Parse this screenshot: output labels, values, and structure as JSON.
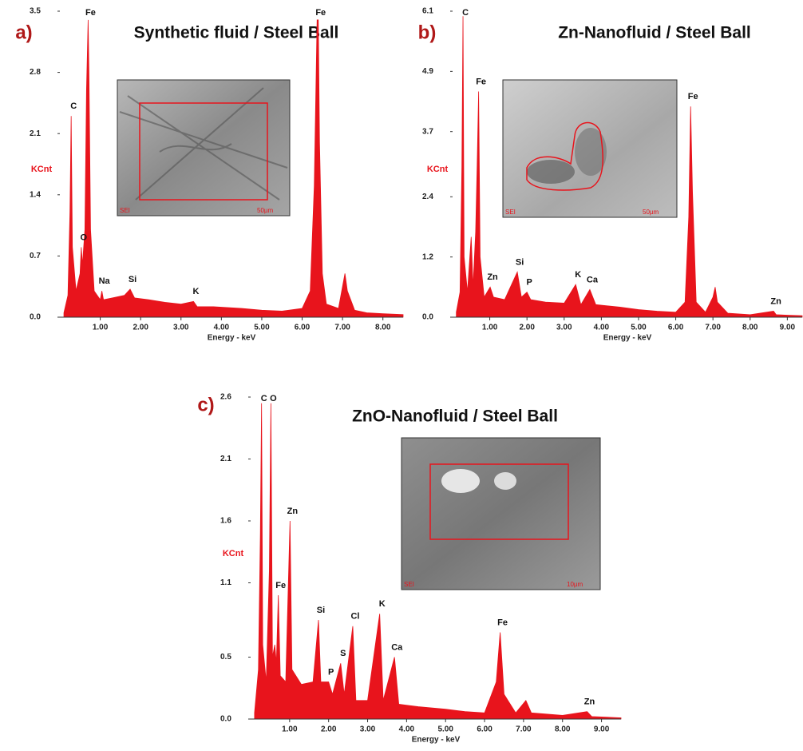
{
  "chart_data": [
    {
      "type": "area",
      "panel": "a)",
      "title": "Synthetic fluid / Steel Ball",
      "y_label": "KCnt",
      "x_label": "Energy - keV",
      "color": "#e8141c",
      "xlim": [
        0,
        8.5
      ],
      "ylim": [
        0,
        3.5
      ],
      "xticks": [
        {
          "value": 1,
          "label": "1.00"
        },
        {
          "value": 2,
          "label": "2.00"
        },
        {
          "value": 3,
          "label": "3.00"
        },
        {
          "value": 4,
          "label": "4.00"
        },
        {
          "value": 5,
          "label": "5.00"
        },
        {
          "value": 6,
          "label": "6.00"
        },
        {
          "value": 7,
          "label": "7.00"
        },
        {
          "value": 8,
          "label": "8.00"
        }
      ],
      "yticks": [
        {
          "value": 0,
          "label": "0.0"
        },
        0.7,
        1.4,
        2.1,
        2.8,
        3.5
      ],
      "x": [
        0.1,
        0.2,
        0.25,
        0.28,
        0.31,
        0.4,
        0.5,
        0.53,
        0.56,
        0.62,
        0.66,
        0.7,
        0.72,
        0.76,
        0.85,
        1.0,
        1.04,
        1.08,
        1.3,
        1.6,
        1.74,
        1.85,
        2.2,
        2.6,
        3.0,
        3.31,
        3.4,
        3.8,
        4.5,
        5.0,
        5.5,
        6.0,
        6.2,
        6.3,
        6.37,
        6.4,
        6.43,
        6.5,
        6.6,
        6.9,
        7.0,
        7.06,
        7.12,
        7.3,
        7.6,
        8.0,
        8.5
      ],
      "values": [
        0.05,
        0.25,
        1.2,
        2.3,
        0.8,
        0.3,
        0.5,
        0.8,
        0.6,
        1.0,
        2.6,
        3.4,
        2.8,
        1.0,
        0.3,
        0.2,
        0.3,
        0.2,
        0.22,
        0.25,
        0.32,
        0.22,
        0.2,
        0.17,
        0.15,
        0.18,
        0.12,
        0.12,
        0.1,
        0.08,
        0.07,
        0.1,
        0.3,
        1.5,
        3.4,
        3.4,
        2.0,
        0.5,
        0.15,
        0.1,
        0.35,
        0.5,
        0.3,
        0.08,
        0.05,
        0.04,
        0.03
      ],
      "annotations": [
        {
          "text": "C",
          "x": 0.28
        },
        {
          "text": "O",
          "x": 0.53
        },
        {
          "text": "Fe",
          "x": 0.7
        },
        {
          "text": "Na",
          "x": 1.04
        },
        {
          "text": "Si",
          "x": 1.74
        },
        {
          "text": "K",
          "x": 3.31
        },
        {
          "text": "Fe",
          "x": 6.4
        }
      ],
      "inset_labels": [
        "SEI",
        "50µm"
      ]
    },
    {
      "type": "area",
      "panel": "b)",
      "title": "Zn-Nanofluid / Steel Ball",
      "y_label": "KCnt",
      "x_label": "Energy - keV",
      "color": "#e8141c",
      "xlim": [
        0,
        9.4
      ],
      "ylim": [
        0,
        6.1
      ],
      "xticks": [
        {
          "value": 1,
          "label": "1.00"
        },
        {
          "value": 2,
          "label": "2.00"
        },
        {
          "value": 3,
          "label": "3.00"
        },
        {
          "value": 4,
          "label": "4.00"
        },
        {
          "value": 5,
          "label": "5.00"
        },
        {
          "value": 6,
          "label": "6.00"
        },
        {
          "value": 7,
          "label": "7.00"
        },
        {
          "value": 8,
          "label": "8.00"
        },
        {
          "value": 9,
          "label": "9.00"
        }
      ],
      "yticks": [
        {
          "value": 0,
          "label": "0.0"
        },
        1.2,
        2.4,
        3.7,
        4.9,
        6.1
      ],
      "x": [
        0.1,
        0.2,
        0.25,
        0.28,
        0.31,
        0.4,
        0.5,
        0.55,
        0.62,
        0.66,
        0.7,
        0.74,
        0.85,
        1.01,
        1.1,
        1.4,
        1.74,
        1.85,
        2.0,
        2.1,
        2.5,
        3.0,
        3.31,
        3.45,
        3.69,
        3.85,
        4.5,
        5.0,
        5.5,
        6.0,
        6.25,
        6.35,
        6.4,
        6.45,
        6.55,
        6.8,
        7.0,
        7.06,
        7.12,
        7.4,
        8.0,
        8.63,
        8.7,
        9.0,
        9.4
      ],
      "values": [
        0.1,
        0.5,
        3.0,
        6.0,
        1.2,
        0.5,
        1.6,
        0.6,
        1.7,
        3.0,
        4.5,
        1.2,
        0.4,
        0.6,
        0.4,
        0.35,
        0.9,
        0.4,
        0.5,
        0.35,
        0.3,
        0.28,
        0.65,
        0.25,
        0.55,
        0.25,
        0.2,
        0.15,
        0.12,
        0.1,
        0.3,
        2.0,
        4.2,
        2.5,
        0.3,
        0.1,
        0.4,
        0.6,
        0.3,
        0.08,
        0.05,
        0.12,
        0.05,
        0.04,
        0.03
      ],
      "annotations": [
        {
          "text": "C",
          "x": 0.28
        },
        {
          "text": "Fe",
          "x": 0.7
        },
        {
          "text": "Zn",
          "x": 1.01
        },
        {
          "text": "Si",
          "x": 1.74
        },
        {
          "text": "P",
          "x": 2.0
        },
        {
          "text": "K",
          "x": 3.31
        },
        {
          "text": "Ca",
          "x": 3.69
        },
        {
          "text": "Fe",
          "x": 6.4
        },
        {
          "text": "Zn",
          "x": 8.63
        }
      ],
      "inset_labels": [
        "SEI",
        "50µm"
      ]
    },
    {
      "type": "area",
      "panel": "c)",
      "title": "ZnO-Nanofluid / Steel Ball",
      "y_label": "KCnt",
      "x_label": "Energy - keV",
      "color": "#e8141c",
      "xlim": [
        0,
        9.5
      ],
      "ylim": [
        0,
        2.6
      ],
      "xticks": [
        {
          "value": 1,
          "label": "1.00"
        },
        {
          "value": 2,
          "label": "2.00"
        },
        {
          "value": 3,
          "label": "3.00"
        },
        {
          "value": 4,
          "label": "4.00"
        },
        {
          "value": 5,
          "label": "5.00"
        },
        {
          "value": 6,
          "label": "6.00"
        },
        {
          "value": 7,
          "label": "7.00"
        },
        {
          "value": 8,
          "label": "8.00"
        },
        {
          "value": 9,
          "label": "9.00"
        }
      ],
      "yticks": [
        {
          "value": 0,
          "label": "0.0"
        },
        0.5,
        1.1,
        1.6,
        2.1,
        2.6
      ],
      "x": [
        0.1,
        0.2,
        0.25,
        0.28,
        0.31,
        0.4,
        0.48,
        0.52,
        0.56,
        0.62,
        0.66,
        0.71,
        0.76,
        0.9,
        1.01,
        1.06,
        1.3,
        1.6,
        1.74,
        1.8,
        2.0,
        2.1,
        2.31,
        2.4,
        2.62,
        2.7,
        3.0,
        3.31,
        3.4,
        3.69,
        3.8,
        4.3,
        5.0,
        5.5,
        6.0,
        6.3,
        6.4,
        6.5,
        6.8,
        7.06,
        7.2,
        8.0,
        8.63,
        8.75,
        9.5
      ],
      "values": [
        0.05,
        0.4,
        1.5,
        2.55,
        0.6,
        0.3,
        1.2,
        2.55,
        0.5,
        0.6,
        0.45,
        1.0,
        0.35,
        0.3,
        1.6,
        0.4,
        0.28,
        0.3,
        0.8,
        0.3,
        0.3,
        0.2,
        0.45,
        0.2,
        0.75,
        0.15,
        0.15,
        0.85,
        0.15,
        0.5,
        0.12,
        0.1,
        0.08,
        0.06,
        0.05,
        0.3,
        0.7,
        0.2,
        0.05,
        0.15,
        0.05,
        0.03,
        0.06,
        0.02,
        0.01
      ],
      "annotations": [
        {
          "text": "C",
          "x": 0.28
        },
        {
          "text": "O",
          "x": 0.52
        },
        {
          "text": "Fe",
          "x": 0.71
        },
        {
          "text": "Zn",
          "x": 1.01
        },
        {
          "text": "Si",
          "x": 1.74
        },
        {
          "text": "P",
          "x": 2.0
        },
        {
          "text": "S",
          "x": 2.31
        },
        {
          "text": "Cl",
          "x": 2.62
        },
        {
          "text": "K",
          "x": 3.31
        },
        {
          "text": "Ca",
          "x": 3.69
        },
        {
          "text": "Fe",
          "x": 6.4
        },
        {
          "text": "Zn",
          "x": 8.63
        }
      ],
      "inset_labels": [
        "SEI",
        "10µm"
      ]
    }
  ]
}
